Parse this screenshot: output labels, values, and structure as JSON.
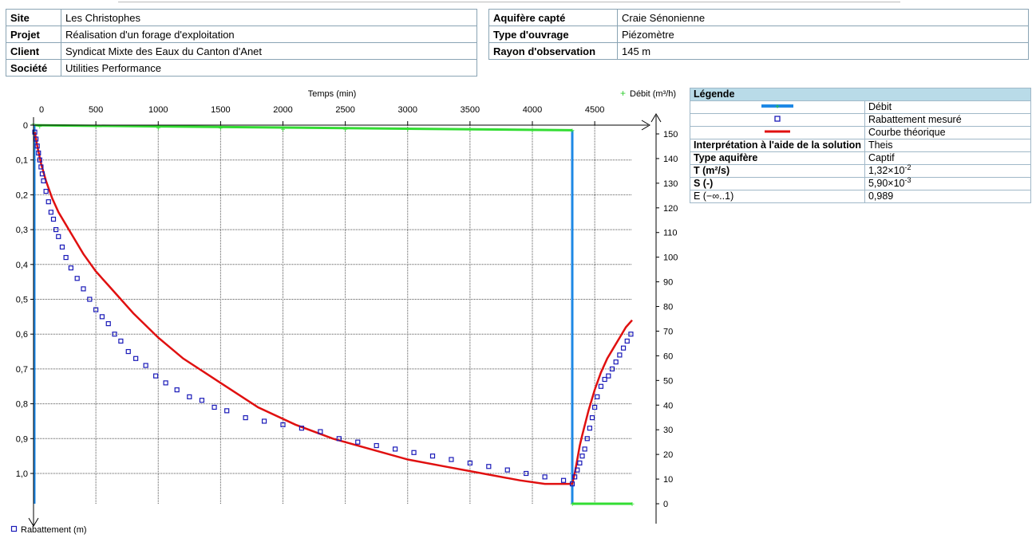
{
  "info_left": [
    {
      "key": "Site",
      "value": "Les Christophes"
    },
    {
      "key": "Projet",
      "value": "Réalisation d'un forage d'exploitation"
    },
    {
      "key": "Client",
      "value": "Syndicat Mixte des Eaux du Canton d'Anet"
    },
    {
      "key": "Société",
      "value": "Utilities Performance"
    }
  ],
  "info_right": [
    {
      "key": "Aquifère capté",
      "value": "Craie Sénonienne"
    },
    {
      "key": "Type d'ouvrage",
      "value": "Piézomètre"
    },
    {
      "key": "Rayon d'observation",
      "value": "145 m"
    }
  ],
  "legend": {
    "title": "Légende",
    "items": [
      {
        "label": "Débit",
        "color": "#1e88e5"
      },
      {
        "label": "Rabattement mesuré",
        "color": "#2020c0"
      },
      {
        "label": "Courbe théorique",
        "color": "#e01010"
      }
    ],
    "interpretation_label": "Interprétation à l'aide de la solution",
    "interpretation_value": "Theis",
    "aquifer_label": "Type aquifère",
    "aquifer_value": "Captif",
    "T_label": "T (m²/s)",
    "T_mantissa": "1,32×10",
    "T_exp": "-2",
    "S_label": "S (-)",
    "S_mantissa": "5,90×10",
    "S_exp": "-3",
    "E_label": "E (−∞..1)",
    "E_value": "0,989"
  },
  "chart_data": {
    "type": "scatter",
    "xlabel": "Temps (min)",
    "ylabel": "Rabattement (m)",
    "y2label": "Débit (m³/h)",
    "xlim": [
      0,
      4800
    ],
    "ylim": [
      0,
      1.1
    ],
    "y2lim": [
      -1,
      155
    ],
    "x_ticks": [
      0,
      500,
      1000,
      1500,
      2000,
      2500,
      3000,
      3500,
      4000,
      4500
    ],
    "x_tick_labels": [
      "0",
      "500",
      "1000",
      "1500",
      "2000",
      "2500",
      "3000",
      "3500",
      "4000",
      "4500"
    ],
    "y_ticks": [
      0,
      0.1,
      0.2,
      0.3,
      0.4,
      0.5,
      0.6,
      0.7,
      0.8,
      0.9,
      1.0
    ],
    "y_tick_labels": [
      "0",
      "0,1",
      "0,2",
      "0,3",
      "0,4",
      "0,5",
      "0,6",
      "0,7",
      "0,8",
      "0,9",
      "1,0"
    ],
    "y2_ticks": [
      0,
      10,
      20,
      30,
      40,
      50,
      60,
      70,
      80,
      90,
      100,
      110,
      120,
      130,
      140,
      150
    ],
    "y2_tick_labels": [
      "0",
      "10",
      "20",
      "30",
      "40",
      "50",
      "60",
      "70",
      "80",
      "90",
      "100",
      "110",
      "120",
      "130",
      "140",
      "150"
    ],
    "grid": true,
    "pump_stop_time": 4320,
    "colors": {
      "debit_line": "#1e88e5",
      "debit_points": "#33dd33",
      "measured": "#1a1ab8",
      "theory": "#e01010"
    },
    "series": [
      {
        "name": "Débit",
        "axis": "y2",
        "x": [
          0,
          50,
          500,
          1000,
          1500,
          2000,
          2500,
          3000,
          3500,
          4000,
          4320,
          4321,
          4800
        ],
        "values": [
          154,
          153,
          153,
          152.5,
          152.5,
          152,
          152,
          152,
          152,
          151.5,
          151.5,
          0,
          0
        ]
      },
      {
        "name": "Rabattement mesuré",
        "axis": "y",
        "x": [
          10,
          20,
          30,
          40,
          50,
          60,
          70,
          80,
          100,
          120,
          140,
          160,
          180,
          200,
          230,
          260,
          300,
          350,
          400,
          450,
          500,
          550,
          600,
          650,
          700,
          760,
          820,
          900,
          980,
          1060,
          1150,
          1250,
          1350,
          1450,
          1550,
          1700,
          1850,
          2000,
          2150,
          2300,
          2450,
          2600,
          2750,
          2900,
          3050,
          3200,
          3350,
          3500,
          3650,
          3800,
          3950,
          4100,
          4250,
          4320,
          4340,
          4360,
          4380,
          4400,
          4420,
          4440,
          4460,
          4480,
          4500,
          4520,
          4550,
          4580,
          4610,
          4640,
          4670,
          4700,
          4730,
          4760,
          4790
        ],
        "values": [
          0.02,
          0.04,
          0.06,
          0.08,
          0.1,
          0.12,
          0.14,
          0.16,
          0.19,
          0.22,
          0.25,
          0.27,
          0.3,
          0.32,
          0.35,
          0.38,
          0.41,
          0.44,
          0.47,
          0.5,
          0.53,
          0.55,
          0.57,
          0.6,
          0.62,
          0.65,
          0.67,
          0.69,
          0.72,
          0.74,
          0.76,
          0.78,
          0.79,
          0.81,
          0.82,
          0.84,
          0.85,
          0.86,
          0.87,
          0.88,
          0.9,
          0.91,
          0.92,
          0.93,
          0.94,
          0.95,
          0.96,
          0.97,
          0.98,
          0.99,
          1.0,
          1.01,
          1.02,
          1.03,
          1.01,
          0.99,
          0.97,
          0.95,
          0.93,
          0.9,
          0.87,
          0.84,
          0.81,
          0.78,
          0.75,
          0.73,
          0.72,
          0.7,
          0.68,
          0.66,
          0.64,
          0.62,
          0.6
        ]
      },
      {
        "name": "Courbe théorique",
        "axis": "y",
        "x": [
          10,
          30,
          60,
          100,
          150,
          200,
          300,
          400,
          500,
          600,
          700,
          800,
          1000,
          1200,
          1500,
          1800,
          2100,
          2400,
          2700,
          3000,
          3300,
          3600,
          3900,
          4100,
          4250,
          4320,
          4340,
          4360,
          4380,
          4400,
          4450,
          4500,
          4550,
          4600,
          4650,
          4700,
          4750,
          4800
        ],
        "values": [
          0.02,
          0.06,
          0.11,
          0.16,
          0.21,
          0.25,
          0.31,
          0.37,
          0.42,
          0.46,
          0.5,
          0.54,
          0.61,
          0.67,
          0.74,
          0.81,
          0.86,
          0.9,
          0.93,
          0.96,
          0.98,
          1.0,
          1.02,
          1.03,
          1.03,
          1.03,
          1.0,
          0.96,
          0.92,
          0.89,
          0.82,
          0.76,
          0.71,
          0.67,
          0.64,
          0.61,
          0.58,
          0.56
        ]
      }
    ]
  }
}
